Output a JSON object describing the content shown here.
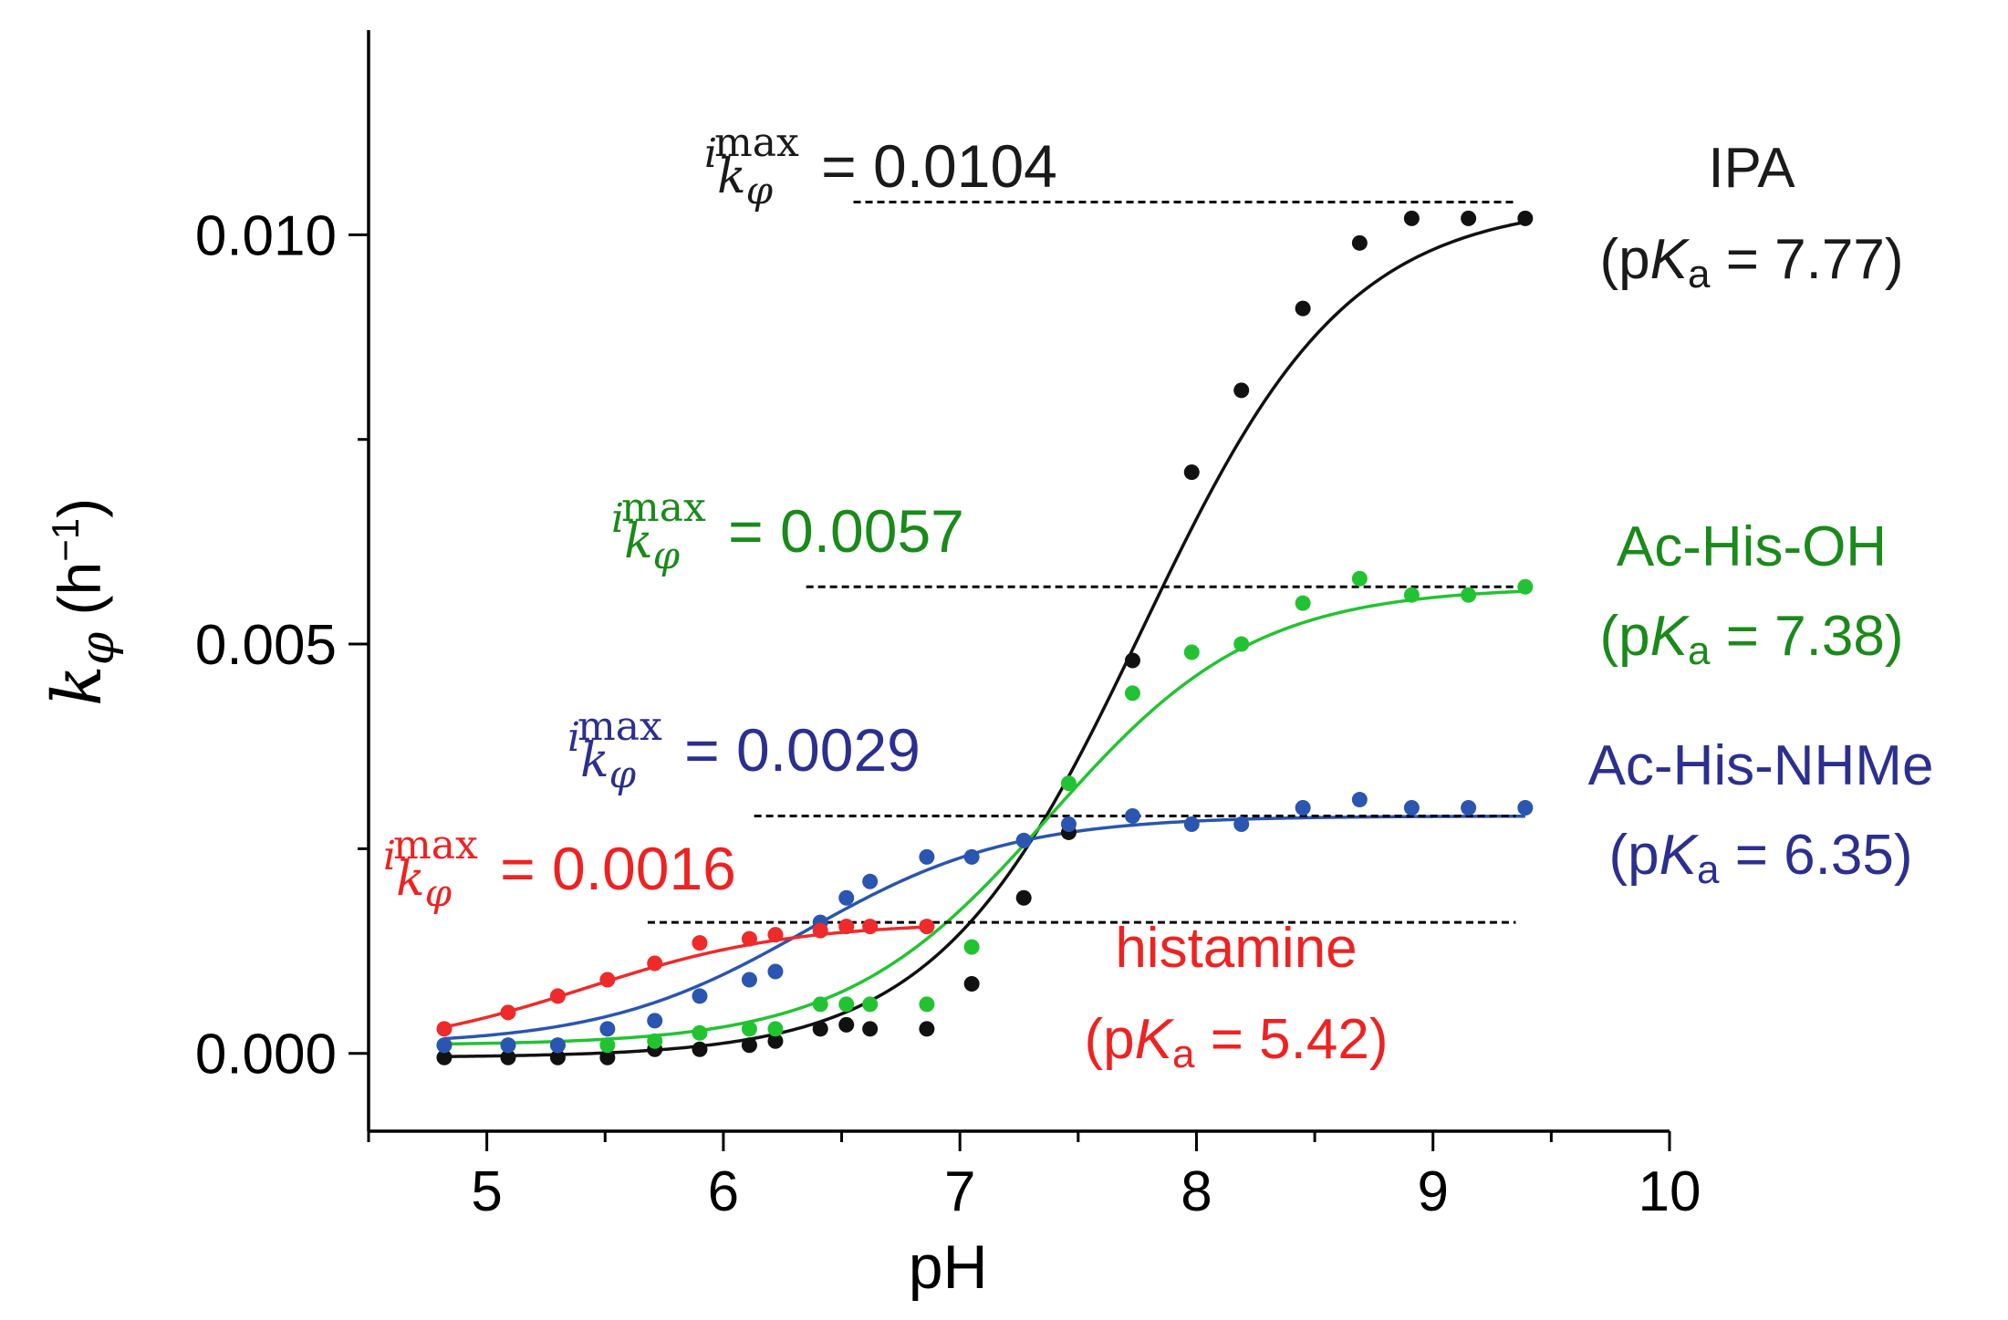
{
  "chart_data": {
    "type": "scatter",
    "xlabel": "pH",
    "ylabel_symbol": "k",
    "ylabel_subscript": "φ",
    "ylabel_unit": "(h",
    "ylabel_unit_sup": "−1",
    "ylabel_unit_close": ")",
    "xlim": [
      4.5,
      10
    ],
    "ylim": [
      -0.00095,
      0.0125
    ],
    "x_ticks": [
      5,
      6,
      7,
      8,
      9,
      10
    ],
    "x_tick_labels": [
      "5",
      "6",
      "7",
      "8",
      "9",
      "10"
    ],
    "y_major_ticks": [
      0.0,
      0.005,
      0.01
    ],
    "y_tick_labels": [
      "0.000",
      "0.005",
      "0.010"
    ],
    "y_minor_ticks": [
      0.0025,
      0.0075
    ],
    "series": [
      {
        "name": "IPA",
        "pka_prefix": "(p",
        "pka_symbol": "K",
        "pka_sub": "a",
        "pka_text": " = 7.77)",
        "pKa": 7.77,
        "imax": 0.0104,
        "imax_label": "= 0.0104",
        "baseline": -5e-05,
        "color": "#111111",
        "label_color": "#1a1a1a",
        "points": [
          [
            4.82,
            -5e-05
          ],
          [
            5.09,
            -5e-05
          ],
          [
            5.3,
            -5e-05
          ],
          [
            5.51,
            -5e-05
          ],
          [
            5.71,
            5e-05
          ],
          [
            5.9,
            5e-05
          ],
          [
            6.11,
            0.0001
          ],
          [
            6.22,
            0.00015
          ],
          [
            6.41,
            0.0003
          ],
          [
            6.52,
            0.00035
          ],
          [
            6.62,
            0.0003
          ],
          [
            6.86,
            0.0003
          ],
          [
            7.05,
            0.00085
          ],
          [
            7.27,
            0.0019
          ],
          [
            7.46,
            0.0027
          ],
          [
            7.73,
            0.0048
          ],
          [
            7.98,
            0.0071
          ],
          [
            8.19,
            0.0081
          ],
          [
            8.45,
            0.0091
          ],
          [
            8.69,
            0.0099
          ],
          [
            8.91,
            0.0102
          ],
          [
            9.15,
            0.0102
          ],
          [
            9.39,
            0.0102
          ]
        ]
      },
      {
        "name": "Ac-His-OH",
        "pka_prefix": "(p",
        "pka_symbol": "K",
        "pka_sub": "a",
        "pka_text": " = 7.38)",
        "pKa": 7.38,
        "imax": 0.0057,
        "imax_label": "= 0.0057",
        "baseline": 0.0001,
        "color": "#22c332",
        "label_color": "#1a8a1a",
        "points": [
          [
            4.82,
            0.0001
          ],
          [
            5.09,
            0.0001
          ],
          [
            5.3,
            0.0001
          ],
          [
            5.51,
            0.0001
          ],
          [
            5.71,
            0.00015
          ],
          [
            5.9,
            0.00025
          ],
          [
            6.11,
            0.0003
          ],
          [
            6.22,
            0.0003
          ],
          [
            6.41,
            0.0006
          ],
          [
            6.52,
            0.0006
          ],
          [
            6.62,
            0.0006
          ],
          [
            6.86,
            0.0006
          ],
          [
            7.05,
            0.0013
          ],
          [
            7.27,
            0.0026
          ],
          [
            7.46,
            0.0033
          ],
          [
            7.73,
            0.0044
          ],
          [
            7.98,
            0.0049
          ],
          [
            8.19,
            0.005
          ],
          [
            8.45,
            0.0055
          ],
          [
            8.69,
            0.0058
          ],
          [
            8.91,
            0.0056
          ],
          [
            9.15,
            0.0056
          ],
          [
            9.39,
            0.0057
          ]
        ]
      },
      {
        "name": "Ac-His-NHMe",
        "pka_prefix": "(p",
        "pka_symbol": "K",
        "pka_sub": "a",
        "pka_text": " = 6.35)",
        "pKa": 6.35,
        "imax": 0.0029,
        "imax_label": "= 0.0029",
        "baseline": 0.0001,
        "color": "#2a55b0",
        "label_color": "#2b2f8f",
        "points": [
          [
            4.82,
            0.0001
          ],
          [
            5.09,
            0.0001
          ],
          [
            5.3,
            0.0001
          ],
          [
            5.51,
            0.0003
          ],
          [
            5.71,
            0.0004
          ],
          [
            5.9,
            0.0007
          ],
          [
            6.11,
            0.0009
          ],
          [
            6.22,
            0.001
          ],
          [
            6.41,
            0.0016
          ],
          [
            6.52,
            0.0019
          ],
          [
            6.62,
            0.0021
          ],
          [
            6.86,
            0.0024
          ],
          [
            7.05,
            0.0024
          ],
          [
            7.27,
            0.0026
          ],
          [
            7.46,
            0.0028
          ],
          [
            7.73,
            0.0029
          ],
          [
            7.98,
            0.0028
          ],
          [
            8.19,
            0.0028
          ],
          [
            8.45,
            0.003
          ],
          [
            8.69,
            0.0031
          ],
          [
            8.91,
            0.003
          ],
          [
            9.15,
            0.003
          ],
          [
            9.39,
            0.003
          ]
        ]
      },
      {
        "name": "histamine",
        "pka_prefix": "(p",
        "pka_symbol": "K",
        "pka_sub": "a",
        "pka_text": " = 5.42)",
        "pKa": 5.42,
        "imax": 0.0016,
        "imax_label": "= 0.0016",
        "baseline": 0.0,
        "color": "#ee2a2a",
        "label_color": "#ee2222",
        "points": [
          [
            4.82,
            0.0003
          ],
          [
            5.09,
            0.0005
          ],
          [
            5.3,
            0.0007
          ],
          [
            5.51,
            0.0009
          ],
          [
            5.71,
            0.0011
          ],
          [
            5.9,
            0.00135
          ],
          [
            6.11,
            0.0014
          ],
          [
            6.22,
            0.00145
          ],
          [
            6.41,
            0.0015
          ],
          [
            6.52,
            0.00155
          ],
          [
            6.62,
            0.00155
          ],
          [
            6.86,
            0.00155
          ]
        ]
      }
    ],
    "imax_prefix": "i",
    "imax_symbol": "k",
    "imax_sub": "φ",
    "imax_sup": "max"
  }
}
